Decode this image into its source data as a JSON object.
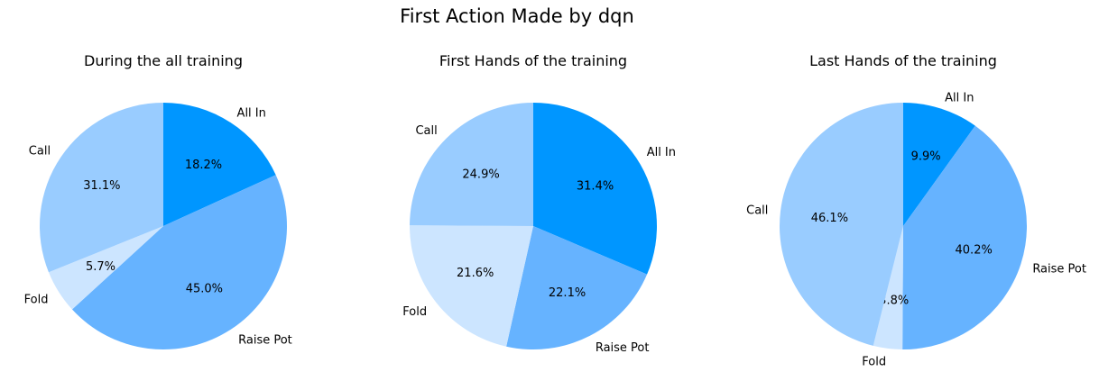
{
  "figure": {
    "suptitle": "First Action Made by dqn"
  },
  "colors": {
    "All In": "#0096ff",
    "Raise Pot": "#66b3ff",
    "Fold": "#cce5ff",
    "Call": "#99ccff"
  },
  "chart_data": [
    {
      "type": "pie",
      "title": "During the all training",
      "labels": [
        "All In",
        "Raise Pot",
        "Fold",
        "Call"
      ],
      "values": [
        18.2,
        45.0,
        5.7,
        31.1
      ],
      "value_labels": [
        "18.2%",
        "45.0%",
        "5.7%",
        "31.1%"
      ],
      "start_angle_deg": 90,
      "direction": "clockwise"
    },
    {
      "type": "pie",
      "title": "First Hands of the training",
      "labels": [
        "All In",
        "Raise Pot",
        "Fold",
        "Call"
      ],
      "values": [
        31.4,
        22.1,
        21.6,
        24.9
      ],
      "value_labels": [
        "31.4%",
        "22.1%",
        "21.6%",
        "24.9%"
      ],
      "start_angle_deg": 90,
      "direction": "clockwise"
    },
    {
      "type": "pie",
      "title": "Last Hands of the training",
      "labels": [
        "All In",
        "Raise Pot",
        "Fold",
        "Call"
      ],
      "values": [
        9.9,
        40.2,
        3.8,
        46.1
      ],
      "value_labels": [
        "9.9%",
        "40.2%",
        "3.8%",
        "46.1%"
      ],
      "start_angle_deg": 90,
      "direction": "clockwise"
    }
  ]
}
